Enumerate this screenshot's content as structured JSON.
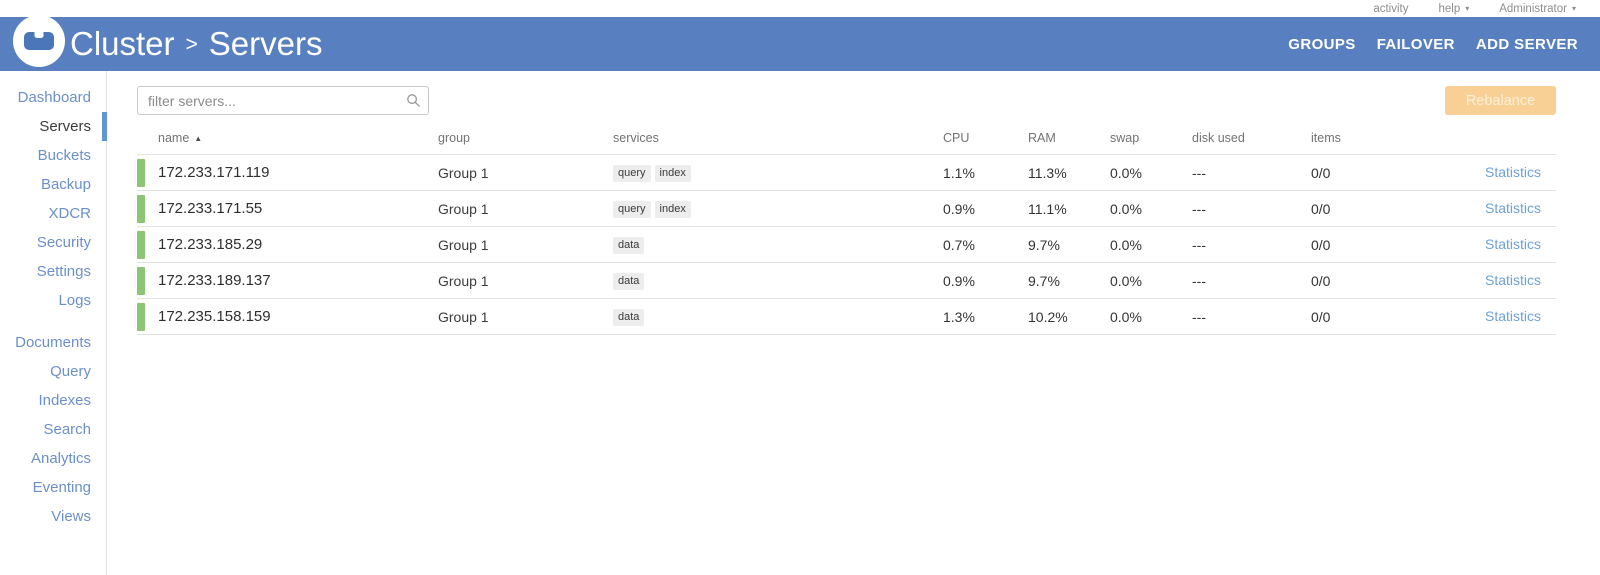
{
  "topbar": {
    "activity": "activity",
    "help": "help",
    "admin": "Administrator"
  },
  "header": {
    "breadcrumb": {
      "section": "Cluster",
      "separator": ">",
      "page": "Servers"
    },
    "menu": [
      "GROUPS",
      "FAILOVER",
      "ADD SERVER"
    ]
  },
  "sidebar": {
    "active": "Servers",
    "group1": [
      "Dashboard",
      "Servers",
      "Buckets",
      "Backup",
      "XDCR",
      "Security",
      "Settings",
      "Logs"
    ],
    "group2": [
      "Documents",
      "Query",
      "Indexes",
      "Search",
      "Analytics",
      "Eventing",
      "Views"
    ]
  },
  "toolbar": {
    "filter_placeholder": "filter servers...",
    "rebalance_label": "Rebalance"
  },
  "table": {
    "columns": [
      "name",
      "group",
      "services",
      "CPU",
      "RAM",
      "swap",
      "disk used",
      "items"
    ],
    "rows": [
      {
        "name": "172.233.171.119",
        "group": "Group 1",
        "services": [
          "query",
          "index"
        ],
        "cpu": "1.1%",
        "ram": "11.3%",
        "swap": "0.0%",
        "disk_used": "---",
        "items": "0/0",
        "stats_label": "Statistics"
      },
      {
        "name": "172.233.171.55",
        "group": "Group 1",
        "services": [
          "query",
          "index"
        ],
        "cpu": "0.9%",
        "ram": "11.1%",
        "swap": "0.0%",
        "disk_used": "---",
        "items": "0/0",
        "stats_label": "Statistics"
      },
      {
        "name": "172.233.185.29",
        "group": "Group 1",
        "services": [
          "data"
        ],
        "cpu": "0.7%",
        "ram": "9.7%",
        "swap": "0.0%",
        "disk_used": "---",
        "items": "0/0",
        "stats_label": "Statistics"
      },
      {
        "name": "172.233.189.137",
        "group": "Group 1",
        "services": [
          "data"
        ],
        "cpu": "0.9%",
        "ram": "9.7%",
        "swap": "0.0%",
        "disk_used": "---",
        "items": "0/0",
        "stats_label": "Statistics"
      },
      {
        "name": "172.235.158.159",
        "group": "Group 1",
        "services": [
          "data"
        ],
        "cpu": "1.3%",
        "ram": "10.2%",
        "swap": "0.0%",
        "disk_used": "---",
        "items": "0/0",
        "stats_label": "Statistics"
      }
    ]
  },
  "colors": {
    "header_blue": "#5880c0",
    "health_green": "#8cc573",
    "link_blue": "#6ea2d8",
    "sidebar_link": "#6c90c8",
    "active_indicator": "#5f96d2",
    "rebalance_bg": "#f8d096"
  }
}
